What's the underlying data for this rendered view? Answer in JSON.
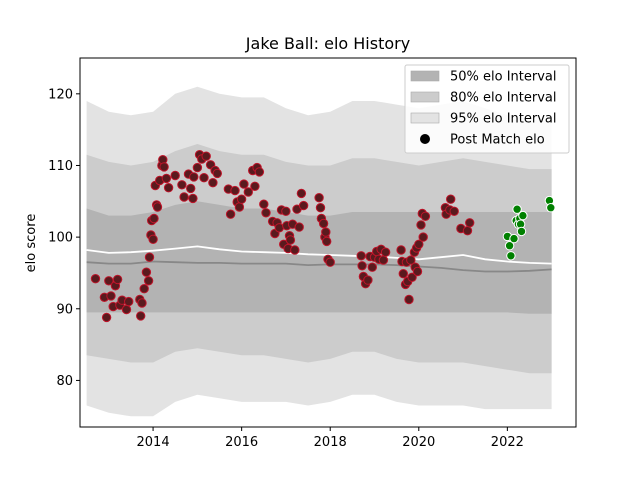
{
  "chart_data": {
    "type": "scatter",
    "title": "Jake Ball: elo History",
    "xlabel": "",
    "ylabel": "elo score",
    "xlim": [
      2012.35,
      2023.55
    ],
    "ylim": [
      73.5,
      125
    ],
    "xticks": [
      2014,
      2016,
      2018,
      2020,
      2022
    ],
    "yticks": [
      80,
      90,
      100,
      110,
      120
    ],
    "grid": false,
    "legend_position": "top-right",
    "colors": {
      "band95": "#e3e3e3",
      "band80": "#cccccc",
      "band50": "#b3b3b3",
      "median_line": "#888888",
      "mean_line": "#ffffff",
      "point_fill_past": "#5a1a1e",
      "point_edge_past": "#c0142a",
      "point_fill_recent": "#008000",
      "point_edge_recent": "#ffffff"
    },
    "legend": [
      {
        "label": "50% elo Interval",
        "kind": "band50"
      },
      {
        "label": "80% elo Interval",
        "kind": "band80"
      },
      {
        "label": "95% elo Interval",
        "kind": "band95"
      },
      {
        "label": "Post Match elo",
        "kind": "point"
      }
    ],
    "bands": {
      "x": [
        2012.5,
        2013.0,
        2013.5,
        2014.0,
        2014.5,
        2015.0,
        2015.5,
        2016.0,
        2016.5,
        2017.0,
        2017.5,
        2018.0,
        2018.5,
        2019.0,
        2019.5,
        2020.0,
        2020.5,
        2021.0,
        2021.5,
        2022.0,
        2022.5,
        2023.0
      ],
      "p95_hi": [
        119,
        117.5,
        117,
        117.5,
        120,
        121,
        120,
        119.5,
        119.5,
        118,
        117,
        117.5,
        119,
        119,
        118.5,
        118,
        118.5,
        119,
        118,
        117,
        116.5,
        116
      ],
      "p80_hi": [
        111.5,
        110.5,
        110,
        110.5,
        112,
        113,
        112,
        111.5,
        111.5,
        110.5,
        110,
        110,
        111,
        111,
        110.5,
        110,
        110.5,
        111,
        110.5,
        110,
        109.5,
        109.5
      ],
      "p50_hi": [
        104,
        103,
        103,
        103.5,
        104.5,
        105,
        104.5,
        104,
        104,
        103.5,
        103,
        103,
        103.5,
        103.5,
        103.5,
        103.5,
        103.5,
        103.5,
        103.5,
        103.5,
        103.5,
        103.5
      ],
      "median": [
        96.5,
        96.3,
        96.3,
        96.6,
        96.5,
        96.4,
        96.4,
        96.3,
        96.3,
        96.3,
        96.1,
        96.2,
        96.2,
        96.2,
        96.1,
        95.9,
        95.7,
        95.4,
        95.2,
        95.2,
        95.3,
        95.5
      ],
      "mean": [
        98.2,
        97.8,
        97.9,
        98.1,
        98.4,
        98.7,
        98.3,
        98.0,
        97.9,
        97.8,
        97.6,
        97.5,
        97.4,
        97.3,
        97.1,
        96.9,
        97.2,
        97.5,
        96.9,
        96.6,
        96.4,
        96.3
      ],
      "p50_lo": [
        89.5,
        89.5,
        89.5,
        89.5,
        89.5,
        89.5,
        89.5,
        89.5,
        89.5,
        89.5,
        89.5,
        89.5,
        89.5,
        89.5,
        89.5,
        89.5,
        89.5,
        89.5,
        89.5,
        89.5,
        89.3,
        89.3
      ],
      "p80_lo": [
        83.5,
        83,
        82.5,
        82.5,
        84,
        84.5,
        84,
        83.5,
        83.5,
        83,
        82.5,
        83,
        84,
        84,
        83,
        82.5,
        82.5,
        82.5,
        82,
        81.5,
        81,
        81
      ],
      "p95_lo": [
        76.5,
        75.5,
        75,
        75,
        77,
        78,
        77.5,
        77,
        77,
        77,
        76.5,
        77,
        78,
        78,
        77,
        76.5,
        76.5,
        76.5,
        76,
        76,
        76,
        76
      ]
    },
    "points_past": [
      [
        2012.7,
        94.2
      ],
      [
        2012.9,
        91.6
      ],
      [
        2012.95,
        88.8
      ],
      [
        2013.0,
        93.9
      ],
      [
        2013.05,
        91.8
      ],
      [
        2013.1,
        90.3
      ],
      [
        2013.15,
        93.2
      ],
      [
        2013.2,
        94.1
      ],
      [
        2013.25,
        90.5
      ],
      [
        2013.3,
        91.2
      ],
      [
        2013.4,
        89.9
      ],
      [
        2013.45,
        91.0
      ],
      [
        2013.7,
        91.3
      ],
      [
        2013.72,
        89.0
      ],
      [
        2013.75,
        90.8
      ],
      [
        2013.8,
        92.8
      ],
      [
        2013.85,
        95.1
      ],
      [
        2013.9,
        93.9
      ],
      [
        2013.92,
        97.2
      ],
      [
        2013.95,
        100.3
      ],
      [
        2013.97,
        102.3
      ],
      [
        2014.0,
        99.7
      ],
      [
        2014.02,
        102.6
      ],
      [
        2014.05,
        107.2
      ],
      [
        2014.08,
        104.5
      ],
      [
        2014.1,
        104.2
      ],
      [
        2014.15,
        107.9
      ],
      [
        2014.2,
        110.0
      ],
      [
        2014.22,
        110.8
      ],
      [
        2014.25,
        109.8
      ],
      [
        2014.3,
        108.2
      ],
      [
        2014.35,
        106.9
      ],
      [
        2014.5,
        108.6
      ],
      [
        2014.65,
        107.3
      ],
      [
        2014.7,
        105.6
      ],
      [
        2014.8,
        108.8
      ],
      [
        2014.85,
        106.8
      ],
      [
        2014.9,
        105.4
      ],
      [
        2014.92,
        108.4
      ],
      [
        2015.0,
        109.7
      ],
      [
        2015.05,
        111.5
      ],
      [
        2015.1,
        110.9
      ],
      [
        2015.15,
        108.3
      ],
      [
        2015.2,
        111.3
      ],
      [
        2015.3,
        110.1
      ],
      [
        2015.35,
        107.6
      ],
      [
        2015.4,
        109.3
      ],
      [
        2015.45,
        108.9
      ],
      [
        2015.7,
        106.7
      ],
      [
        2015.75,
        103.2
      ],
      [
        2015.85,
        106.5
      ],
      [
        2015.9,
        104.9
      ],
      [
        2015.95,
        104.2
      ],
      [
        2016.0,
        105.3
      ],
      [
        2016.05,
        107.4
      ],
      [
        2016.15,
        106.3
      ],
      [
        2016.25,
        109.3
      ],
      [
        2016.3,
        107.1
      ],
      [
        2016.35,
        109.7
      ],
      [
        2016.4,
        109.1
      ],
      [
        2016.5,
        104.6
      ],
      [
        2016.55,
        103.4
      ],
      [
        2016.7,
        102.2
      ],
      [
        2016.75,
        100.5
      ],
      [
        2016.8,
        102.0
      ],
      [
        2016.85,
        101.3
      ],
      [
        2016.9,
        103.8
      ],
      [
        2016.95,
        99.0
      ],
      [
        2017.0,
        103.6
      ],
      [
        2017.02,
        101.6
      ],
      [
        2017.05,
        98.4
      ],
      [
        2017.08,
        100.2
      ],
      [
        2017.1,
        99.6
      ],
      [
        2017.15,
        101.8
      ],
      [
        2017.2,
        98.2
      ],
      [
        2017.25,
        103.9
      ],
      [
        2017.3,
        101.4
      ],
      [
        2017.35,
        106.1
      ],
      [
        2017.4,
        104.4
      ],
      [
        2017.75,
        105.5
      ],
      [
        2017.78,
        104.1
      ],
      [
        2017.8,
        102.6
      ],
      [
        2017.85,
        101.9
      ],
      [
        2017.88,
        100.0
      ],
      [
        2017.9,
        100.7
      ],
      [
        2017.92,
        99.4
      ],
      [
        2017.95,
        96.9
      ],
      [
        2018.0,
        96.5
      ],
      [
        2018.7,
        97.4
      ],
      [
        2018.72,
        96.0
      ],
      [
        2018.75,
        94.5
      ],
      [
        2018.8,
        93.5
      ],
      [
        2018.85,
        94.0
      ],
      [
        2018.9,
        97.3
      ],
      [
        2018.95,
        95.8
      ],
      [
        2019.0,
        97.2
      ],
      [
        2019.05,
        98.0
      ],
      [
        2019.1,
        96.9
      ],
      [
        2019.15,
        98.3
      ],
      [
        2019.2,
        96.8
      ],
      [
        2019.25,
        97.9
      ],
      [
        2019.6,
        98.2
      ],
      [
        2019.62,
        96.6
      ],
      [
        2019.65,
        94.9
      ],
      [
        2019.7,
        93.4
      ],
      [
        2019.72,
        96.5
      ],
      [
        2019.75,
        93.8
      ],
      [
        2019.78,
        91.3
      ],
      [
        2019.82,
        96.8
      ],
      [
        2019.85,
        94.4
      ],
      [
        2019.9,
        97.9
      ],
      [
        2019.92,
        95.8
      ],
      [
        2019.95,
        98.5
      ],
      [
        2019.97,
        95.2
      ],
      [
        2020.0,
        99.0
      ],
      [
        2020.05,
        101.7
      ],
      [
        2020.08,
        103.3
      ],
      [
        2020.1,
        100.0
      ],
      [
        2020.15,
        102.9
      ],
      [
        2020.6,
        104.1
      ],
      [
        2020.62,
        103.2
      ],
      [
        2020.7,
        103.8
      ],
      [
        2020.72,
        105.3
      ],
      [
        2020.8,
        103.6
      ],
      [
        2020.95,
        101.2
      ],
      [
        2021.1,
        100.9
      ],
      [
        2021.15,
        102.0
      ]
    ],
    "points_recent": [
      [
        2022.0,
        100.1
      ],
      [
        2022.05,
        98.8
      ],
      [
        2022.08,
        97.4
      ],
      [
        2022.15,
        99.8
      ],
      [
        2022.2,
        102.3
      ],
      [
        2022.22,
        103.9
      ],
      [
        2022.25,
        101.8
      ],
      [
        2022.28,
        102.6
      ],
      [
        2022.3,
        101.8
      ],
      [
        2022.32,
        100.8
      ],
      [
        2022.35,
        103.0
      ],
      [
        2022.95,
        105.1
      ],
      [
        2022.98,
        104.1
      ]
    ]
  }
}
